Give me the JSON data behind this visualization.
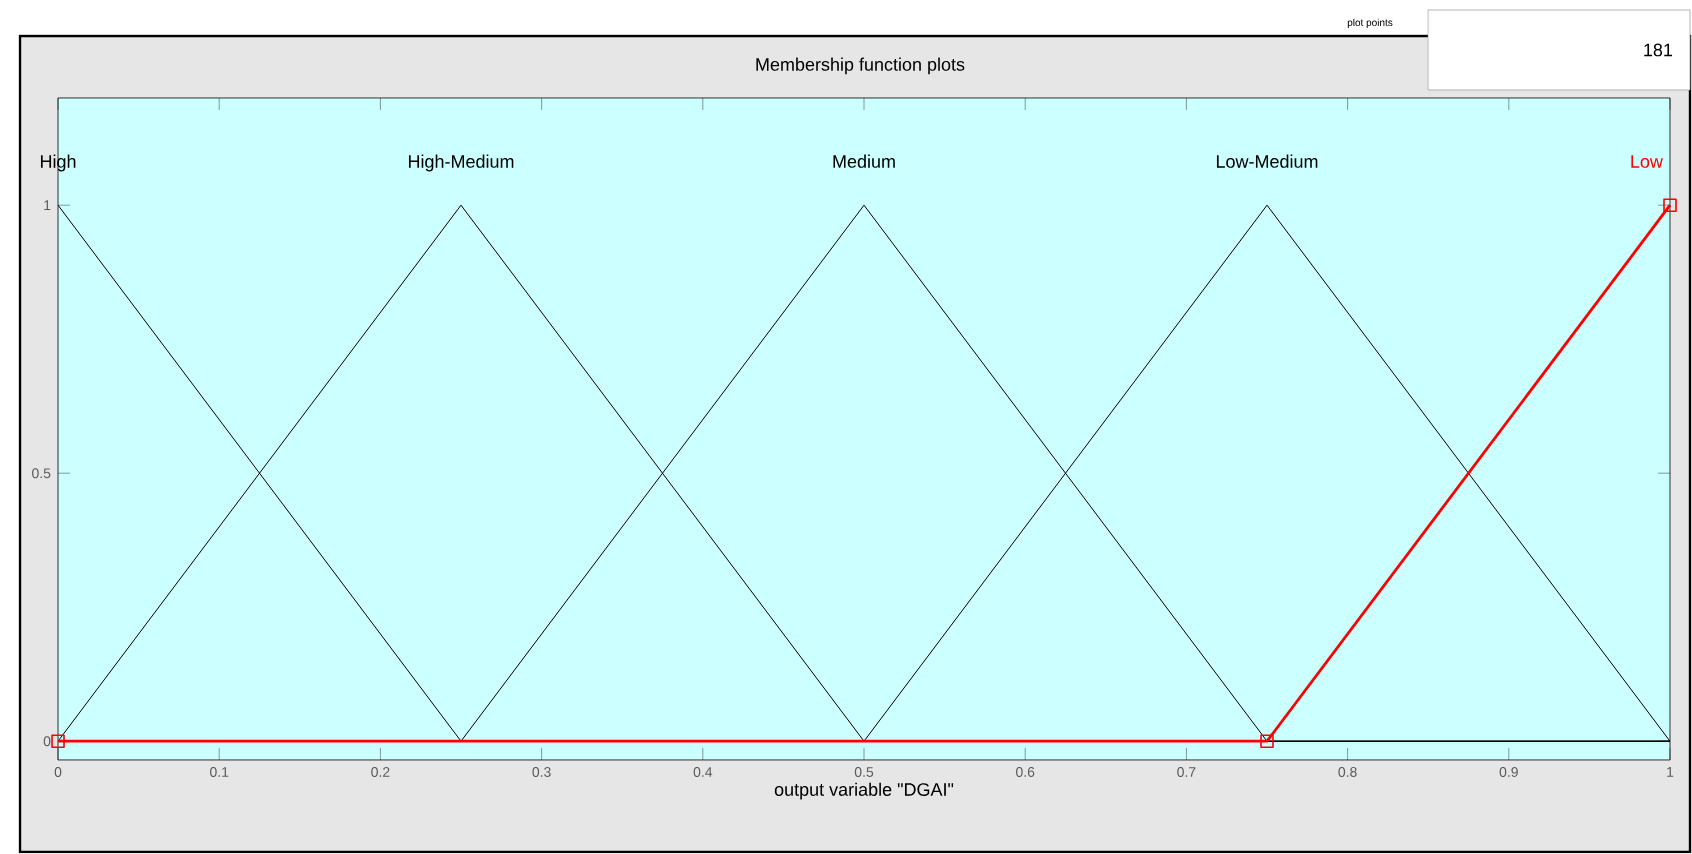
{
  "chart_data": {
    "type": "line",
    "title": "Membership function plots",
    "xlabel": "output variable \"DGAI\"",
    "xlim": [
      0,
      1
    ],
    "ylim": [
      -0.035,
      1.2
    ],
    "xticks": [
      0,
      0.1,
      0.2,
      0.3,
      0.4,
      0.5,
      0.6,
      0.7,
      0.8,
      0.9,
      1
    ],
    "yticks": [
      0,
      0.5,
      1
    ],
    "series": [
      {
        "name": "High",
        "color": "#000000",
        "x": [
          0,
          0.25,
          1
        ],
        "values": [
          1,
          0,
          0
        ]
      },
      {
        "name": "High-Medium",
        "color": "#000000",
        "x": [
          0,
          0.25,
          0.5,
          1
        ],
        "values": [
          0,
          1,
          0,
          0
        ]
      },
      {
        "name": "Medium",
        "color": "#000000",
        "x": [
          0,
          0.25,
          0.5,
          0.75,
          1
        ],
        "values": [
          0,
          0,
          1,
          0,
          0
        ]
      },
      {
        "name": "Low-Medium",
        "color": "#000000",
        "x": [
          0,
          0.5,
          0.75,
          1
        ],
        "values": [
          0,
          0,
          1,
          0
        ]
      },
      {
        "name": "Low",
        "color": "#ff0000",
        "marker": "square",
        "x": [
          0,
          0.75,
          1
        ],
        "values": [
          0,
          0,
          1
        ]
      }
    ],
    "annotations": [
      "plot points",
      "181"
    ]
  }
}
